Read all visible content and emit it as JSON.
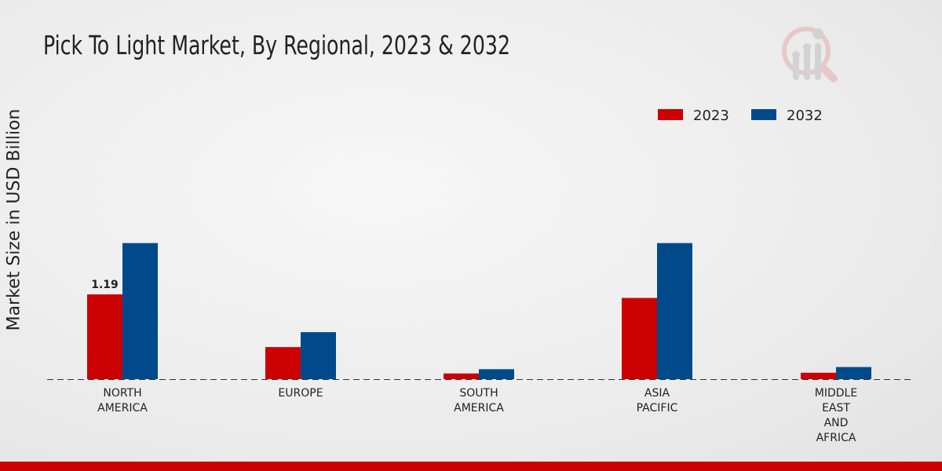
{
  "chart_data": {
    "type": "bar",
    "title": "Pick To Light Market, By Regional, 2023 & 2032",
    "ylabel": "Market Size in USD Billion",
    "xlabel": "",
    "categories": [
      [
        "NORTH",
        "AMERICA"
      ],
      [
        "EUROPE"
      ],
      [
        "SOUTH",
        "AMERICA"
      ],
      [
        "ASIA",
        "PACIFIC"
      ],
      [
        "MIDDLE",
        "EAST",
        "AND",
        "AFRICA"
      ]
    ],
    "series": [
      {
        "name": "2023",
        "color": "#cc0000",
        "values": [
          1.19,
          0.45,
          0.08,
          1.14,
          0.09
        ]
      },
      {
        "name": "2032",
        "color": "#004a8c",
        "values": [
          1.91,
          0.66,
          0.14,
          1.91,
          0.17
        ]
      }
    ],
    "data_labels": [
      {
        "series": 0,
        "category": 0,
        "text": "1.19"
      }
    ],
    "ylim": [
      0,
      4.0
    ],
    "grid": false,
    "legend_position": "top-right"
  }
}
